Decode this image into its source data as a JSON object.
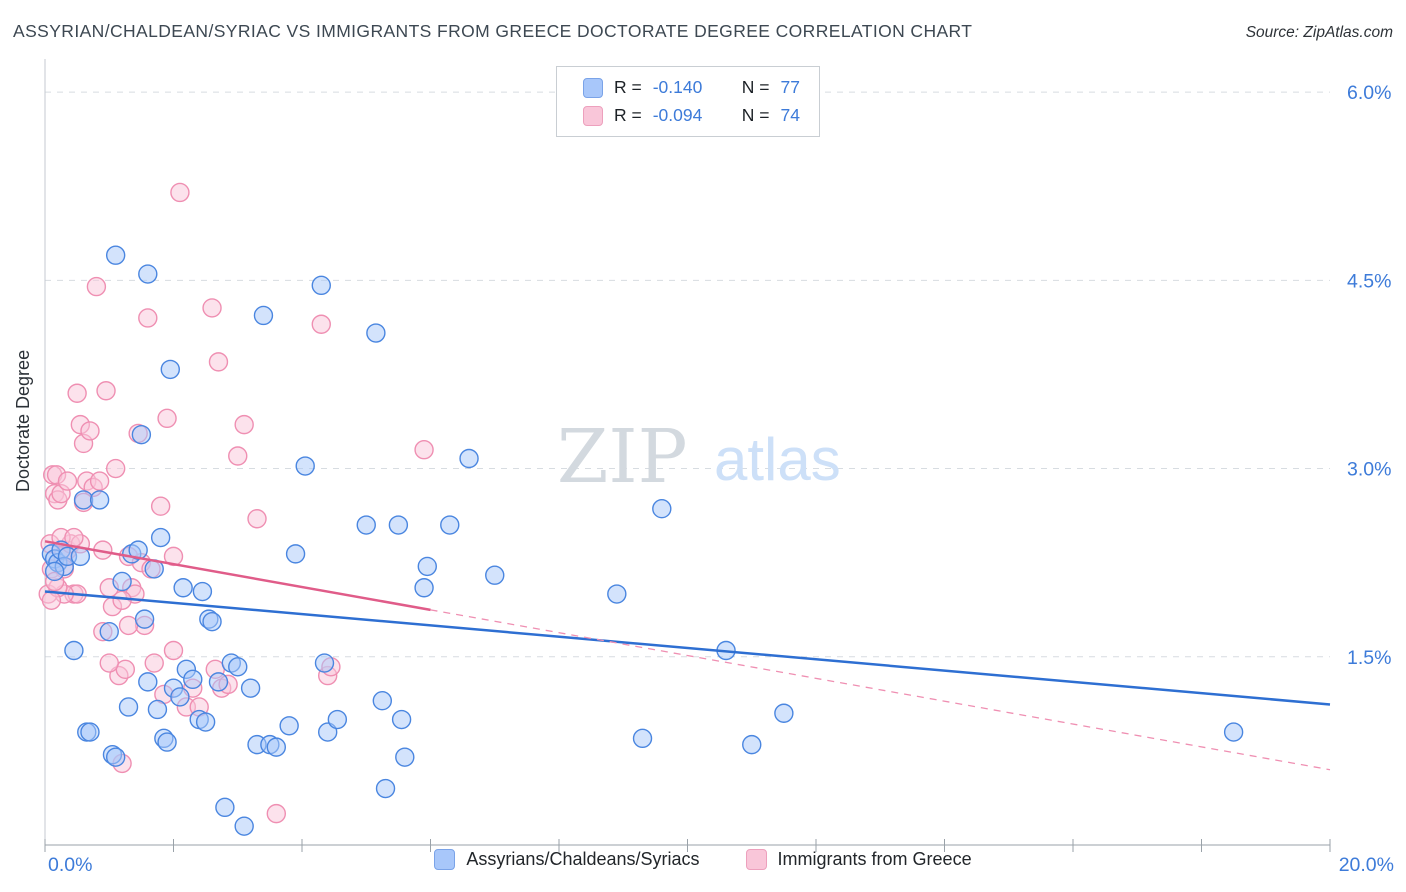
{
  "header": {
    "title": "ASSYRIAN/CHALDEAN/SYRIAC VS IMMIGRANTS FROM GREECE DOCTORATE DEGREE CORRELATION CHART",
    "source": "Source: ZipAtlas.com"
  },
  "legend": {
    "entries": [
      {
        "r_label": "R =",
        "r_value": "-0.140",
        "n_label": "N =",
        "n_value": "77"
      },
      {
        "r_label": "R =",
        "r_value": "-0.094",
        "n_label": "N =",
        "n_value": "74"
      }
    ]
  },
  "watermark": {
    "zip": "ZIP",
    "atlas": "atlas"
  },
  "chart_data": {
    "type": "scatter",
    "title": "Assyrian/Chaldean/Syriac vs Immigrants from Greece Doctorate Degree Correlation Chart",
    "xlabel": "",
    "ylabel": "Doctorate Degree",
    "xlim": [
      0,
      20
    ],
    "ylim": [
      0,
      6.2
    ],
    "x_unit": "percent",
    "y_unit": "percent",
    "grid": "horizontal-dashed",
    "legend_position": "top-center",
    "x_tick_labels": [
      "0.0%",
      "20.0%"
    ],
    "y_ticks": [
      {
        "value": 1.5,
        "label": "1.5%"
      },
      {
        "value": 3.0,
        "label": "3.0%"
      },
      {
        "value": 4.5,
        "label": "4.5%"
      },
      {
        "value": 6.0,
        "label": "6.0%"
      }
    ],
    "series": [
      {
        "name": "Assyrians/Chaldeans/Syriacs",
        "r": -0.14,
        "n": 77,
        "fill": "#a8c7fa",
        "stroke": "#4a86e0",
        "trend_color": "#2e6fd2",
        "trend": {
          "x_start": 0,
          "y_start": 2.02,
          "x_end": 20,
          "y_end": 1.12,
          "solid_until": 20
        },
        "points": [
          [
            0.1,
            2.32
          ],
          [
            0.15,
            2.28
          ],
          [
            0.2,
            2.25
          ],
          [
            0.25,
            2.35
          ],
          [
            0.3,
            2.22
          ],
          [
            0.35,
            2.3
          ],
          [
            0.15,
            2.18
          ],
          [
            0.45,
            1.55
          ],
          [
            0.55,
            2.3
          ],
          [
            0.6,
            2.75
          ],
          [
            0.85,
            2.75
          ],
          [
            0.65,
            0.9
          ],
          [
            0.7,
            0.9
          ],
          [
            1.0,
            1.7
          ],
          [
            1.05,
            0.72
          ],
          [
            1.1,
            0.7
          ],
          [
            1.1,
            4.7
          ],
          [
            1.2,
            2.1
          ],
          [
            1.3,
            1.1
          ],
          [
            1.35,
            2.32
          ],
          [
            1.45,
            2.35
          ],
          [
            1.5,
            3.27
          ],
          [
            1.55,
            1.8
          ],
          [
            1.6,
            4.55
          ],
          [
            1.6,
            1.3
          ],
          [
            1.7,
            2.2
          ],
          [
            1.75,
            1.08
          ],
          [
            1.8,
            2.45
          ],
          [
            1.85,
            0.85
          ],
          [
            1.9,
            0.82
          ],
          [
            1.95,
            3.79
          ],
          [
            2.0,
            1.25
          ],
          [
            2.1,
            1.18
          ],
          [
            2.15,
            2.05
          ],
          [
            2.2,
            1.4
          ],
          [
            2.3,
            1.32
          ],
          [
            2.4,
            1.0
          ],
          [
            2.5,
            0.98
          ],
          [
            2.55,
            1.8
          ],
          [
            2.6,
            1.78
          ],
          [
            2.7,
            1.3
          ],
          [
            2.8,
            0.3
          ],
          [
            2.9,
            1.45
          ],
          [
            3.0,
            1.42
          ],
          [
            3.1,
            0.15
          ],
          [
            3.2,
            1.25
          ],
          [
            3.3,
            0.8
          ],
          [
            3.4,
            4.22
          ],
          [
            3.5,
            0.8
          ],
          [
            3.6,
            0.78
          ],
          [
            3.8,
            0.95
          ],
          [
            3.9,
            2.32
          ],
          [
            4.05,
            3.02
          ],
          [
            4.3,
            4.46
          ],
          [
            4.35,
            1.45
          ],
          [
            4.4,
            0.9
          ],
          [
            4.55,
            1.0
          ],
          [
            5.0,
            2.55
          ],
          [
            5.15,
            4.08
          ],
          [
            5.25,
            1.15
          ],
          [
            5.3,
            0.45
          ],
          [
            5.5,
            2.55
          ],
          [
            5.55,
            1.0
          ],
          [
            5.6,
            0.7
          ],
          [
            5.9,
            2.05
          ],
          [
            5.95,
            2.22
          ],
          [
            6.3,
            2.55
          ],
          [
            6.6,
            3.08
          ],
          [
            7.0,
            2.15
          ],
          [
            8.9,
            2.0
          ],
          [
            9.3,
            0.85
          ],
          [
            9.6,
            2.68
          ],
          [
            10.6,
            1.55
          ],
          [
            11.0,
            0.8
          ],
          [
            11.5,
            1.05
          ],
          [
            2.45,
            2.02
          ],
          [
            18.5,
            0.9
          ]
        ]
      },
      {
        "name": "Immigrants from Greece",
        "r": -0.094,
        "n": 74,
        "fill": "#f9c6d9",
        "stroke": "#ef8fb2",
        "trend_color": "#e05c89",
        "trend": {
          "x_start": 0,
          "y_start": 2.42,
          "x_end": 20,
          "y_end": 0.6,
          "solid_until": 6
        },
        "points": [
          [
            0.05,
            2.0
          ],
          [
            0.08,
            2.4
          ],
          [
            0.1,
            2.2
          ],
          [
            0.12,
            2.95
          ],
          [
            0.15,
            2.8
          ],
          [
            0.18,
            2.95
          ],
          [
            0.2,
            2.75
          ],
          [
            0.25,
            2.8
          ],
          [
            0.28,
            2.3
          ],
          [
            0.3,
            2.2
          ],
          [
            0.35,
            2.35
          ],
          [
            0.4,
            2.4
          ],
          [
            0.45,
            2.0
          ],
          [
            0.5,
            3.6
          ],
          [
            0.55,
            3.35
          ],
          [
            0.6,
            3.2
          ],
          [
            0.65,
            2.9
          ],
          [
            0.7,
            3.3
          ],
          [
            0.75,
            2.85
          ],
          [
            0.8,
            4.45
          ],
          [
            0.85,
            2.9
          ],
          [
            0.9,
            2.35
          ],
          [
            0.95,
            3.62
          ],
          [
            1.0,
            2.05
          ],
          [
            1.05,
            1.9
          ],
          [
            1.1,
            3.0
          ],
          [
            1.15,
            1.35
          ],
          [
            1.2,
            0.65
          ],
          [
            1.25,
            1.4
          ],
          [
            1.3,
            2.3
          ],
          [
            1.35,
            2.05
          ],
          [
            1.4,
            2.0
          ],
          [
            1.45,
            3.28
          ],
          [
            1.5,
            2.25
          ],
          [
            1.55,
            1.75
          ],
          [
            1.6,
            4.2
          ],
          [
            1.65,
            2.2
          ],
          [
            1.7,
            1.45
          ],
          [
            1.8,
            2.7
          ],
          [
            1.85,
            1.2
          ],
          [
            1.9,
            3.4
          ],
          [
            2.0,
            2.3
          ],
          [
            2.1,
            5.2
          ],
          [
            2.2,
            1.1
          ],
          [
            2.3,
            1.25
          ],
          [
            2.4,
            1.1
          ],
          [
            2.6,
            4.28
          ],
          [
            2.65,
            1.4
          ],
          [
            2.7,
            3.85
          ],
          [
            2.75,
            1.25
          ],
          [
            2.85,
            1.28
          ],
          [
            3.0,
            3.1
          ],
          [
            3.1,
            3.35
          ],
          [
            3.3,
            2.6
          ],
          [
            3.6,
            0.25
          ],
          [
            4.3,
            4.15
          ],
          [
            4.4,
            1.35
          ],
          [
            5.9,
            3.15
          ],
          [
            4.45,
            1.42
          ],
          [
            1.0,
            1.45
          ],
          [
            0.5,
            2.0
          ],
          [
            0.3,
            2.0
          ],
          [
            0.2,
            2.05
          ],
          [
            0.15,
            2.1
          ],
          [
            0.1,
            1.95
          ],
          [
            0.25,
            2.45
          ],
          [
            0.35,
            2.9
          ],
          [
            0.55,
            2.4
          ],
          [
            0.45,
            2.45
          ],
          [
            1.2,
            1.95
          ],
          [
            0.9,
            1.7
          ],
          [
            1.3,
            1.75
          ],
          [
            2.0,
            1.55
          ],
          [
            0.6,
            2.73
          ]
        ]
      }
    ]
  }
}
